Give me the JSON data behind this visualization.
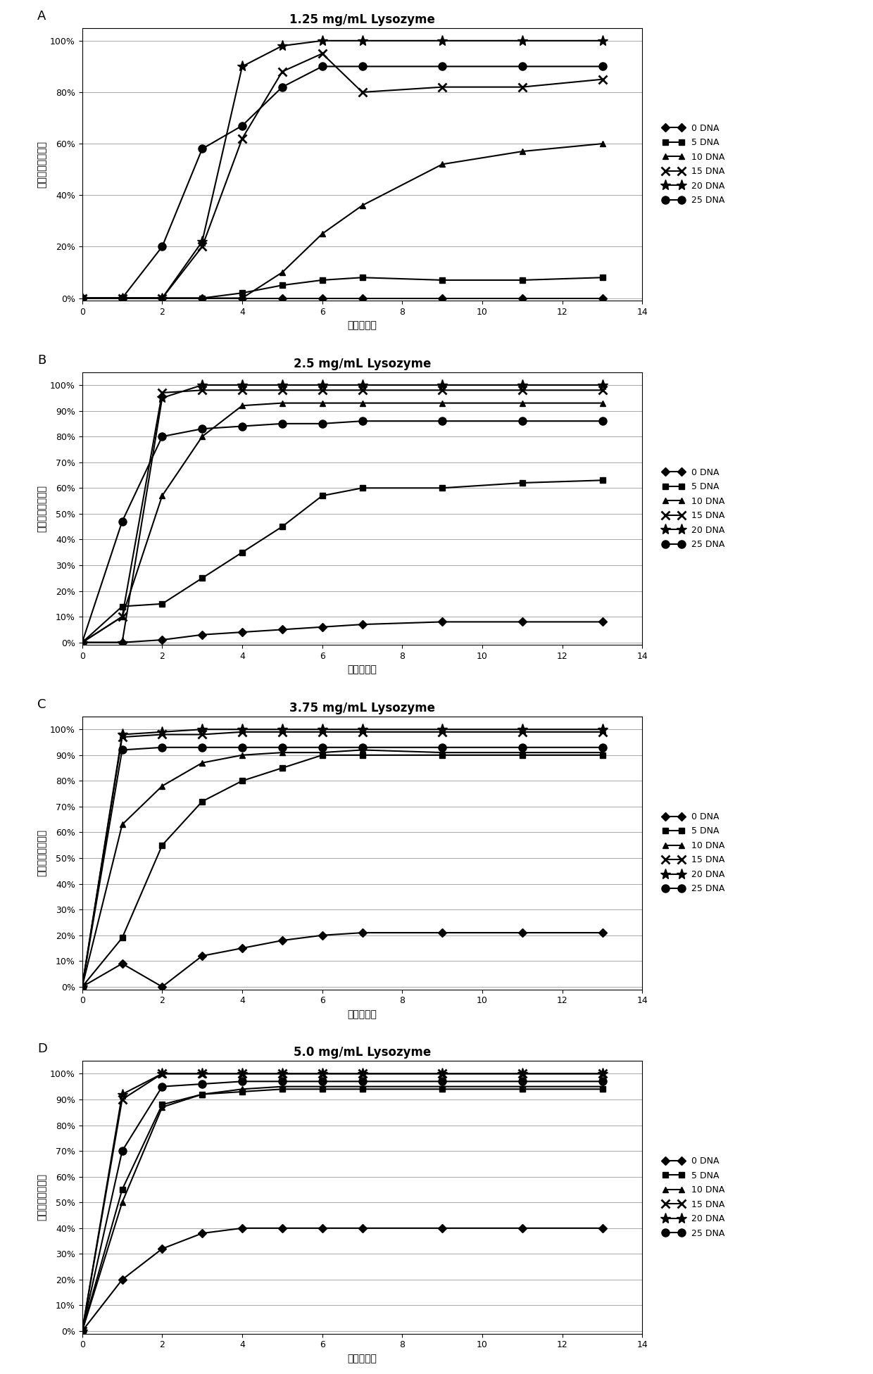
{
  "panels": [
    {
      "title": "1.25 mg/mL Lysozyme",
      "label": "A",
      "series": {
        "0 DNA": {
          "x": [
            0,
            1,
            2,
            3,
            4,
            5,
            6,
            7,
            9,
            11,
            13
          ],
          "y": [
            0,
            0,
            0,
            0,
            0,
            0,
            0,
            0,
            0,
            0,
            0
          ],
          "marker": "D",
          "ls": "-"
        },
        "5 DNA": {
          "x": [
            0,
            1,
            2,
            3,
            4,
            5,
            6,
            7,
            9,
            11,
            13
          ],
          "y": [
            0,
            0,
            0,
            0,
            0.02,
            0.05,
            0.07,
            0.08,
            0.07,
            0.07,
            0.08
          ],
          "marker": "s",
          "ls": "-"
        },
        "10 DNA": {
          "x": [
            0,
            1,
            2,
            3,
            4,
            5,
            6,
            7,
            9,
            11,
            13
          ],
          "y": [
            0,
            0,
            0,
            0,
            0,
            0.1,
            0.25,
            0.36,
            0.52,
            0.57,
            0.6
          ],
          "marker": "^",
          "ls": "-"
        },
        "15 DNA": {
          "x": [
            0,
            1,
            2,
            3,
            4,
            5,
            6,
            7,
            9,
            11,
            13
          ],
          "y": [
            0,
            0,
            0,
            0.2,
            0.62,
            0.88,
            0.95,
            0.8,
            0.82,
            0.82,
            0.85
          ],
          "marker": "x",
          "ls": "-"
        },
        "20 DNA": {
          "x": [
            0,
            1,
            2,
            3,
            4,
            5,
            6,
            7,
            9,
            11,
            13
          ],
          "y": [
            0,
            0,
            0,
            0.22,
            0.9,
            0.98,
            1.0,
            1.0,
            1.0,
            1.0,
            1.0
          ],
          "marker": "*",
          "ls": "-"
        },
        "25 DNA": {
          "x": [
            0,
            1,
            2,
            3,
            4,
            5,
            6,
            7,
            9,
            11,
            13
          ],
          "y": [
            0,
            0,
            0.2,
            0.58,
            0.67,
            0.82,
            0.9,
            0.9,
            0.9,
            0.9,
            0.9
          ],
          "marker": "o",
          "ls": "-"
        }
      }
    },
    {
      "title": "2.5 mg/mL Lysozyme",
      "label": "B",
      "series": {
        "0 DNA": {
          "x": [
            0,
            1,
            2,
            3,
            4,
            5,
            6,
            7,
            9,
            11,
            13
          ],
          "y": [
            0,
            0,
            0.01,
            0.03,
            0.04,
            0.05,
            0.06,
            0.07,
            0.08,
            0.08,
            0.08
          ],
          "marker": "D",
          "ls": "-"
        },
        "5 DNA": {
          "x": [
            0,
            1,
            2,
            3,
            4,
            5,
            6,
            7,
            9,
            11,
            13
          ],
          "y": [
            0,
            0.14,
            0.15,
            0.25,
            0.35,
            0.45,
            0.57,
            0.6,
            0.6,
            0.62,
            0.63
          ],
          "marker": "s",
          "ls": "-"
        },
        "10 DNA": {
          "x": [
            0,
            1,
            2,
            3,
            4,
            5,
            6,
            7,
            9,
            11,
            13
          ],
          "y": [
            0,
            0.1,
            0.57,
            0.8,
            0.92,
            0.93,
            0.93,
            0.93,
            0.93,
            0.93,
            0.93
          ],
          "marker": "^",
          "ls": "-"
        },
        "15 DNA": {
          "x": [
            0,
            1,
            2,
            3,
            4,
            5,
            6,
            7,
            9,
            11,
            13
          ],
          "y": [
            0,
            0.1,
            0.97,
            0.98,
            0.98,
            0.98,
            0.98,
            0.98,
            0.98,
            0.98,
            0.98
          ],
          "marker": "x",
          "ls": "-"
        },
        "20 DNA": {
          "x": [
            0,
            1,
            2,
            3,
            4,
            5,
            6,
            7,
            9,
            11,
            13
          ],
          "y": [
            0,
            0,
            0.95,
            1.0,
            1.0,
            1.0,
            1.0,
            1.0,
            1.0,
            1.0,
            1.0
          ],
          "marker": "*",
          "ls": "-"
        },
        "25 DNA": {
          "x": [
            0,
            1,
            2,
            3,
            4,
            5,
            6,
            7,
            9,
            11,
            13
          ],
          "y": [
            0,
            0.47,
            0.8,
            0.83,
            0.84,
            0.85,
            0.85,
            0.86,
            0.86,
            0.86,
            0.86
          ],
          "marker": "o",
          "ls": "-"
        }
      }
    },
    {
      "title": "3.75 mg/mL Lysozyme",
      "label": "C",
      "series": {
        "0 DNA": {
          "x": [
            0,
            1,
            2,
            3,
            4,
            5,
            6,
            7,
            9,
            11,
            13
          ],
          "y": [
            0,
            0.09,
            0.0,
            0.12,
            0.15,
            0.18,
            0.2,
            0.21,
            0.21,
            0.21,
            0.21
          ],
          "marker": "D",
          "ls": "-"
        },
        "5 DNA": {
          "x": [
            0,
            1,
            2,
            3,
            4,
            5,
            6,
            7,
            9,
            11,
            13
          ],
          "y": [
            0,
            0.19,
            0.55,
            0.72,
            0.8,
            0.85,
            0.9,
            0.9,
            0.9,
            0.9,
            0.9
          ],
          "marker": "s",
          "ls": "-"
        },
        "10 DNA": {
          "x": [
            0,
            1,
            2,
            3,
            4,
            5,
            6,
            7,
            9,
            11,
            13
          ],
          "y": [
            0,
            0.63,
            0.78,
            0.87,
            0.9,
            0.91,
            0.91,
            0.92,
            0.91,
            0.91,
            0.91
          ],
          "marker": "^",
          "ls": "-"
        },
        "15 DNA": {
          "x": [
            0,
            1,
            2,
            3,
            4,
            5,
            6,
            7,
            9,
            11,
            13
          ],
          "y": [
            0,
            0.97,
            0.98,
            0.98,
            0.99,
            0.99,
            0.99,
            0.99,
            0.99,
            0.99,
            0.99
          ],
          "marker": "x",
          "ls": "-"
        },
        "20 DNA": {
          "x": [
            0,
            1,
            2,
            3,
            4,
            5,
            6,
            7,
            9,
            11,
            13
          ],
          "y": [
            0,
            0.98,
            0.99,
            1.0,
            1.0,
            1.0,
            1.0,
            1.0,
            1.0,
            1.0,
            1.0
          ],
          "marker": "*",
          "ls": "-"
        },
        "25 DNA": {
          "x": [
            0,
            1,
            2,
            3,
            4,
            5,
            6,
            7,
            9,
            11,
            13
          ],
          "y": [
            0,
            0.92,
            0.93,
            0.93,
            0.93,
            0.93,
            0.93,
            0.93,
            0.93,
            0.93,
            0.93
          ],
          "marker": "o",
          "ls": "-"
        }
      }
    },
    {
      "title": "5.0 mg/mL Lysozyme",
      "label": "D",
      "series": {
        "0 DNA": {
          "x": [
            0,
            1,
            2,
            3,
            4,
            5,
            6,
            7,
            9,
            11,
            13
          ],
          "y": [
            0,
            0.2,
            0.32,
            0.38,
            0.4,
            0.4,
            0.4,
            0.4,
            0.4,
            0.4,
            0.4
          ],
          "marker": "D",
          "ls": "-"
        },
        "5 DNA": {
          "x": [
            0,
            1,
            2,
            3,
            4,
            5,
            6,
            7,
            9,
            11,
            13
          ],
          "y": [
            0,
            0.55,
            0.88,
            0.92,
            0.93,
            0.94,
            0.94,
            0.94,
            0.94,
            0.94,
            0.94
          ],
          "marker": "s",
          "ls": "-"
        },
        "10 DNA": {
          "x": [
            0,
            1,
            2,
            3,
            4,
            5,
            6,
            7,
            9,
            11,
            13
          ],
          "y": [
            0,
            0.5,
            0.87,
            0.92,
            0.94,
            0.95,
            0.95,
            0.95,
            0.95,
            0.95,
            0.95
          ],
          "marker": "^",
          "ls": "-"
        },
        "15 DNA": {
          "x": [
            0,
            1,
            2,
            3,
            4,
            5,
            6,
            7,
            9,
            11,
            13
          ],
          "y": [
            0,
            0.9,
            1.0,
            1.0,
            1.0,
            1.0,
            1.0,
            1.0,
            1.0,
            1.0,
            1.0
          ],
          "marker": "x",
          "ls": "-"
        },
        "20 DNA": {
          "x": [
            0,
            1,
            2,
            3,
            4,
            5,
            6,
            7,
            9,
            11,
            13
          ],
          "y": [
            0,
            0.92,
            1.0,
            1.0,
            1.0,
            1.0,
            1.0,
            1.0,
            1.0,
            1.0,
            1.0
          ],
          "marker": "*",
          "ls": "-"
        },
        "25 DNA": {
          "x": [
            0,
            1,
            2,
            3,
            4,
            5,
            6,
            7,
            9,
            11,
            13
          ],
          "y": [
            0,
            0.7,
            0.95,
            0.96,
            0.97,
            0.97,
            0.97,
            0.97,
            0.97,
            0.97,
            0.97
          ],
          "marker": "o",
          "ls": "-"
        }
      }
    }
  ],
  "series_order": [
    "0 DNA",
    "5 DNA",
    "10 DNA",
    "15 DNA",
    "20 DNA",
    "25 DNA"
  ],
  "xlabel": "时间（天）",
  "ylabel": "蛋白质结晶成功率",
  "xlim": [
    0,
    14
  ],
  "xticks": [
    0,
    2,
    4,
    6,
    8,
    10,
    12,
    14
  ],
  "yticks": [
    0.0,
    0.1,
    0.2,
    0.3,
    0.4,
    0.5,
    0.6,
    0.7,
    0.8,
    0.9,
    1.0
  ],
  "ytick_labels_A": [
    "0%",
    "20%",
    "40%",
    "60%",
    "80%",
    "100%"
  ],
  "yticks_A": [
    0.0,
    0.2,
    0.4,
    0.6,
    0.8,
    1.0
  ],
  "ytick_labels_BCD": [
    "0%",
    "10%",
    "20%",
    "30%",
    "40%",
    "50%",
    "60%",
    "70%",
    "80%",
    "90%",
    "100%"
  ],
  "yticks_BCD": [
    0.0,
    0.1,
    0.2,
    0.3,
    0.4,
    0.5,
    0.6,
    0.7,
    0.8,
    0.9,
    1.0
  ],
  "line_color": "#000000",
  "line_width": 1.5,
  "marker_size": 6,
  "font_size_title": 12,
  "font_size_label": 10,
  "font_size_tick": 9,
  "font_size_legend": 9,
  "bg_color": "#ffffff"
}
